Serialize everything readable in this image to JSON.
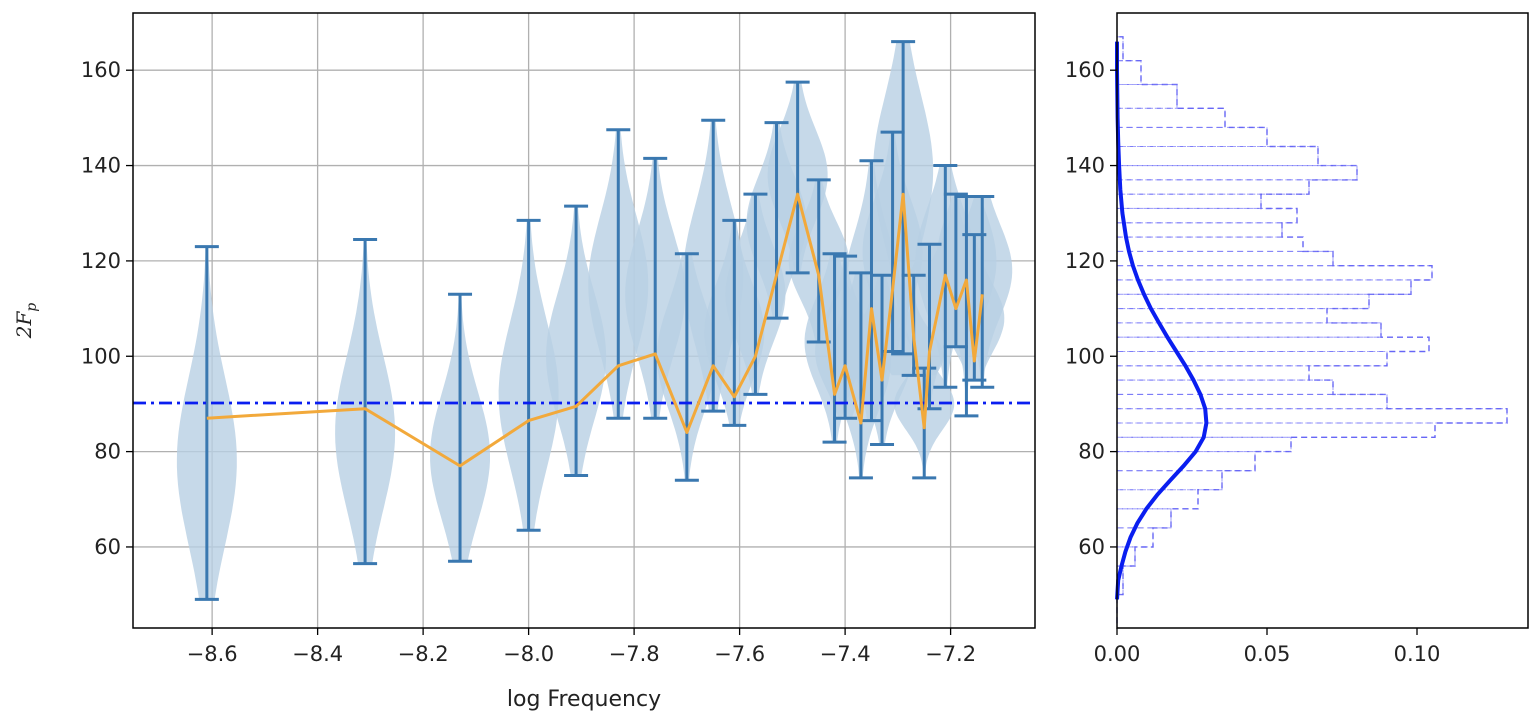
{
  "chart_data": [
    {
      "type": "violin",
      "title": "",
      "xlabel": "log Frequency",
      "ylabel": "2F",
      "ylabel_subscript": "p",
      "xlim": [
        -8.75,
        -7.04
      ],
      "ylim": [
        43,
        172
      ],
      "xticks": [
        -8.6,
        -8.4,
        -8.2,
        -8.0,
        -7.8,
        -7.6,
        -7.4,
        -7.2
      ],
      "xtick_labels": [
        "−8.6",
        "−8.4",
        "−8.2",
        "−8.0",
        "−7.8",
        "−7.6",
        "−7.4",
        "−7.2"
      ],
      "yticks": [
        60,
        80,
        100,
        120,
        140,
        160
      ],
      "ytick_labels": [
        "60",
        "80",
        "100",
        "120",
        "140",
        "160"
      ],
      "grid": true,
      "reference_line": {
        "y": 90.2,
        "style": "dash-dot",
        "color": "#0a1ef0"
      },
      "violin_color": "#b8cfe4",
      "errorbar_color": "#3a78b0",
      "mean_line_color": "#f2a93b",
      "violins": [
        {
          "x": -8.61,
          "min": 49,
          "max": 123,
          "mean": 87,
          "center": 78
        },
        {
          "x": -8.31,
          "min": 56.5,
          "max": 124.5,
          "mean": 89,
          "center": 84
        },
        {
          "x": -8.13,
          "min": 57,
          "max": 113,
          "mean": 77,
          "center": 79
        },
        {
          "x": -8.0,
          "min": 63.5,
          "max": 128.5,
          "mean": 86.5,
          "center": 92
        },
        {
          "x": -7.91,
          "min": 75,
          "max": 131.5,
          "mean": 89.5,
          "center": 100
        },
        {
          "x": -7.83,
          "min": 87,
          "max": 147.5,
          "mean": 98,
          "center": 115
        },
        {
          "x": -7.76,
          "min": 87,
          "max": 141.5,
          "mean": 100.5,
          "center": 113
        },
        {
          "x": -7.7,
          "min": 74,
          "max": 121.5,
          "mean": 84,
          "center": 100
        },
        {
          "x": -7.65,
          "min": 88.5,
          "max": 149.5,
          "mean": 98,
          "center": 117
        },
        {
          "x": -7.61,
          "min": 85.5,
          "max": 128.5,
          "mean": 91.5,
          "center": 105
        },
        {
          "x": -7.57,
          "min": 92,
          "max": 134,
          "mean": 100,
          "center": 113
        },
        {
          "x": -7.53,
          "min": 108,
          "max": 149,
          "mean": 117,
          "center": 128
        },
        {
          "x": -7.49,
          "min": 117.5,
          "max": 157.5,
          "mean": 134,
          "center": 138
        },
        {
          "x": -7.45,
          "min": 103,
          "max": 137,
          "mean": 117,
          "center": 120
        },
        {
          "x": -7.42,
          "min": 82,
          "max": 121.5,
          "mean": 92,
          "center": 103
        },
        {
          "x": -7.4,
          "min": 87,
          "max": 121,
          "mean": 98,
          "center": 101
        },
        {
          "x": -7.37,
          "min": 74.5,
          "max": 117.5,
          "mean": 86,
          "center": 99
        },
        {
          "x": -7.35,
          "min": 86.5,
          "max": 141,
          "mean": 110,
          "center": 112
        },
        {
          "x": -7.33,
          "min": 81.5,
          "max": 117,
          "mean": 95,
          "center": 100
        },
        {
          "x": -7.31,
          "min": 101,
          "max": 147,
          "mean": 114,
          "center": 122
        },
        {
          "x": -7.29,
          "min": 100.5,
          "max": 166,
          "mean": 134,
          "center": 139
        },
        {
          "x": -7.27,
          "min": 96,
          "max": 117,
          "mean": 104,
          "center": 100
        },
        {
          "x": -7.25,
          "min": 74.5,
          "max": 97.5,
          "mean": 85,
          "center": 90
        },
        {
          "x": -7.24,
          "min": 89,
          "max": 123.5,
          "mean": 101,
          "center": 110
        },
        {
          "x": -7.21,
          "min": 93.5,
          "max": 140,
          "mean": 117,
          "center": 120
        },
        {
          "x": -7.19,
          "min": 102,
          "max": 134,
          "mean": 110,
          "center": 115
        },
        {
          "x": -7.17,
          "min": 87.5,
          "max": 133.5,
          "mean": 116,
          "center": 120
        },
        {
          "x": -7.155,
          "min": 95,
          "max": 125.5,
          "mean": 99,
          "center": 108
        },
        {
          "x": -7.14,
          "min": 93.5,
          "max": 133.5,
          "mean": 113,
          "center": 118
        }
      ]
    },
    {
      "type": "histogram",
      "orientation": "horizontal",
      "title": "",
      "xlabel": "",
      "ylabel": "",
      "xlim": [
        0.0,
        0.137
      ],
      "ylim": [
        43,
        172
      ],
      "xticks": [
        0.0,
        0.05,
        0.1
      ],
      "xtick_labels": [
        "0.00",
        "0.05",
        "0.10"
      ],
      "yticks": [
        60,
        80,
        100,
        120,
        140,
        160
      ],
      "ytick_labels": [
        "60",
        "80",
        "100",
        "120",
        "140",
        "160"
      ],
      "grid": false,
      "histogram_color": "#5b5bf5",
      "histogram_style": "dashed-step",
      "density_curve": {
        "color": "#0a1ef0",
        "description": "fitted density",
        "points": [
          [
            49,
            0.0
          ],
          [
            53,
            0.0004
          ],
          [
            56,
            0.0015
          ],
          [
            59,
            0.0028
          ],
          [
            62,
            0.0045
          ],
          [
            65,
            0.0068
          ],
          [
            68,
            0.0098
          ],
          [
            71,
            0.0135
          ],
          [
            74,
            0.0178
          ],
          [
            77,
            0.0222
          ],
          [
            80,
            0.0262
          ],
          [
            83,
            0.0289
          ],
          [
            86,
            0.0298
          ],
          [
            89,
            0.0294
          ],
          [
            92,
            0.0278
          ],
          [
            95,
            0.0255
          ],
          [
            98,
            0.0228
          ],
          [
            101,
            0.0198
          ],
          [
            104,
            0.0168
          ],
          [
            107,
            0.014
          ],
          [
            110,
            0.0113
          ],
          [
            113,
            0.009
          ],
          [
            116,
            0.007
          ],
          [
            119,
            0.0053
          ],
          [
            122,
            0.004
          ],
          [
            125,
            0.003
          ],
          [
            130,
            0.0018
          ],
          [
            135,
            0.0011
          ],
          [
            140,
            0.0007
          ],
          [
            145,
            0.0004
          ],
          [
            150,
            0.0002
          ],
          [
            155,
            0.0001
          ],
          [
            160,
            0.0
          ],
          [
            166,
            0.0
          ]
        ]
      },
      "bins": [
        {
          "y0": 44,
          "y1": 50,
          "v": 0.0
        },
        {
          "y0": 50,
          "y1": 56,
          "v": 0.002
        },
        {
          "y0": 56,
          "y1": 60,
          "v": 0.006
        },
        {
          "y0": 60,
          "y1": 64,
          "v": 0.012
        },
        {
          "y0": 64,
          "y1": 68,
          "v": 0.018
        },
        {
          "y0": 68,
          "y1": 72,
          "v": 0.027
        },
        {
          "y0": 72,
          "y1": 76,
          "v": 0.035
        },
        {
          "y0": 76,
          "y1": 80,
          "v": 0.046
        },
        {
          "y0": 80,
          "y1": 83,
          "v": 0.058
        },
        {
          "y0": 83,
          "y1": 86,
          "v": 0.106
        },
        {
          "y0": 86,
          "y1": 89,
          "v": 0.13
        },
        {
          "y0": 89,
          "y1": 92,
          "v": 0.09
        },
        {
          "y0": 92,
          "y1": 95,
          "v": 0.072
        },
        {
          "y0": 95,
          "y1": 98,
          "v": 0.064
        },
        {
          "y0": 98,
          "y1": 101,
          "v": 0.09
        },
        {
          "y0": 101,
          "y1": 104,
          "v": 0.104
        },
        {
          "y0": 104,
          "y1": 107,
          "v": 0.088
        },
        {
          "y0": 107,
          "y1": 110,
          "v": 0.07
        },
        {
          "y0": 110,
          "y1": 113,
          "v": 0.084
        },
        {
          "y0": 113,
          "y1": 116,
          "v": 0.098
        },
        {
          "y0": 116,
          "y1": 119,
          "v": 0.105
        },
        {
          "y0": 119,
          "y1": 122,
          "v": 0.072
        },
        {
          "y0": 122,
          "y1": 125,
          "v": 0.062
        },
        {
          "y0": 125,
          "y1": 128,
          "v": 0.055
        },
        {
          "y0": 128,
          "y1": 131,
          "v": 0.06
        },
        {
          "y0": 131,
          "y1": 134,
          "v": 0.048
        },
        {
          "y0": 134,
          "y1": 137,
          "v": 0.064
        },
        {
          "y0": 137,
          "y1": 140,
          "v": 0.08
        },
        {
          "y0": 140,
          "y1": 144,
          "v": 0.067
        },
        {
          "y0": 144,
          "y1": 148,
          "v": 0.05
        },
        {
          "y0": 148,
          "y1": 152,
          "v": 0.036
        },
        {
          "y0": 152,
          "y1": 157,
          "v": 0.02
        },
        {
          "y0": 157,
          "y1": 162,
          "v": 0.008
        },
        {
          "y0": 162,
          "y1": 167,
          "v": 0.002
        }
      ]
    }
  ]
}
